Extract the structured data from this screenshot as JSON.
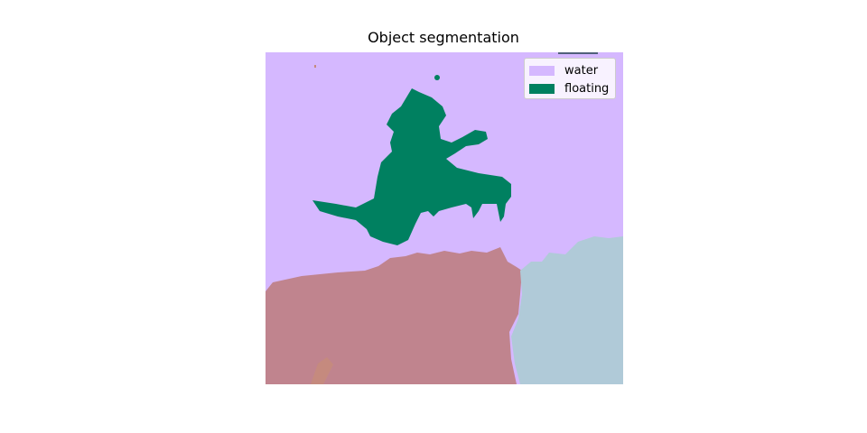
{
  "title": "Object segmentation",
  "legend": {
    "items": [
      {
        "label": "water",
        "color": "#d5b8ff"
      },
      {
        "label": "floating",
        "color": "#008060"
      }
    ]
  },
  "segmentation": {
    "colors": {
      "water": "#d5b8ff",
      "floating": "#008060",
      "rock": "#c0848e",
      "light_region": "#b0cad8",
      "small_patch": "#c58a7e"
    }
  }
}
